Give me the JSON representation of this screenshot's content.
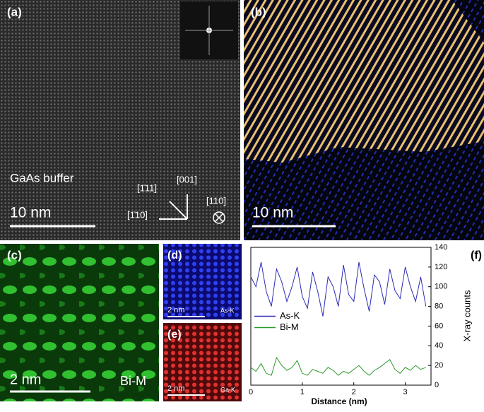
{
  "panels": {
    "a": {
      "label": "(a)",
      "region": "GaAs buffer",
      "scale": "10 nm",
      "dir1": "[1̄11]",
      "dir2": "[001]",
      "dir3": "[1̄10]",
      "dir4": "[110]"
    },
    "b": {
      "label": "(b)",
      "scale": "10 nm"
    },
    "c": {
      "label": "(c)",
      "scale": "2 nm",
      "element": "Bi-M"
    },
    "d": {
      "label": "(d)",
      "scale": "2 nm",
      "element": "As-K"
    },
    "e": {
      "label": "(e)",
      "scale": "2 nm",
      "element": "Ga-K"
    },
    "f": {
      "label": "(f)"
    }
  },
  "chart_data": {
    "type": "line",
    "xlabel": "Distance (nm)",
    "ylabel": "X-ray counts",
    "x": [
      0,
      0.1,
      0.2,
      0.3,
      0.4,
      0.5,
      0.6,
      0.7,
      0.8,
      0.9,
      1.0,
      1.1,
      1.2,
      1.3,
      1.4,
      1.5,
      1.6,
      1.7,
      1.8,
      1.9,
      2.0,
      2.1,
      2.2,
      2.3,
      2.4,
      2.5,
      2.6,
      2.7,
      2.8,
      2.9,
      3.0,
      3.1,
      3.2,
      3.3,
      3.4
    ],
    "series": [
      {
        "name": "As-K",
        "color": "#2a2ab8",
        "values": [
          110,
          100,
          125,
          95,
          80,
          118,
          105,
          85,
          100,
          120,
          90,
          78,
          115,
          95,
          70,
          110,
          100,
          80,
          122,
          92,
          85,
          125,
          98,
          75,
          112,
          105,
          82,
          118,
          96,
          88,
          120,
          100,
          85,
          110,
          80
        ]
      },
      {
        "name": "Bi-M",
        "color": "#2a9a2a",
        "values": [
          18,
          14,
          22,
          12,
          10,
          28,
          20,
          15,
          18,
          25,
          12,
          10,
          16,
          14,
          12,
          18,
          15,
          10,
          14,
          12,
          16,
          20,
          14,
          10,
          15,
          18,
          22,
          26,
          16,
          12,
          18,
          15,
          20,
          16,
          18
        ]
      }
    ],
    "xlim": [
      0,
      3.5
    ],
    "xticks": [
      0,
      1,
      2,
      3
    ],
    "ylim": [
      0,
      140
    ],
    "yticks": [
      0,
      20,
      40,
      60,
      80,
      100,
      120,
      140
    ],
    "legend": "center-left"
  }
}
